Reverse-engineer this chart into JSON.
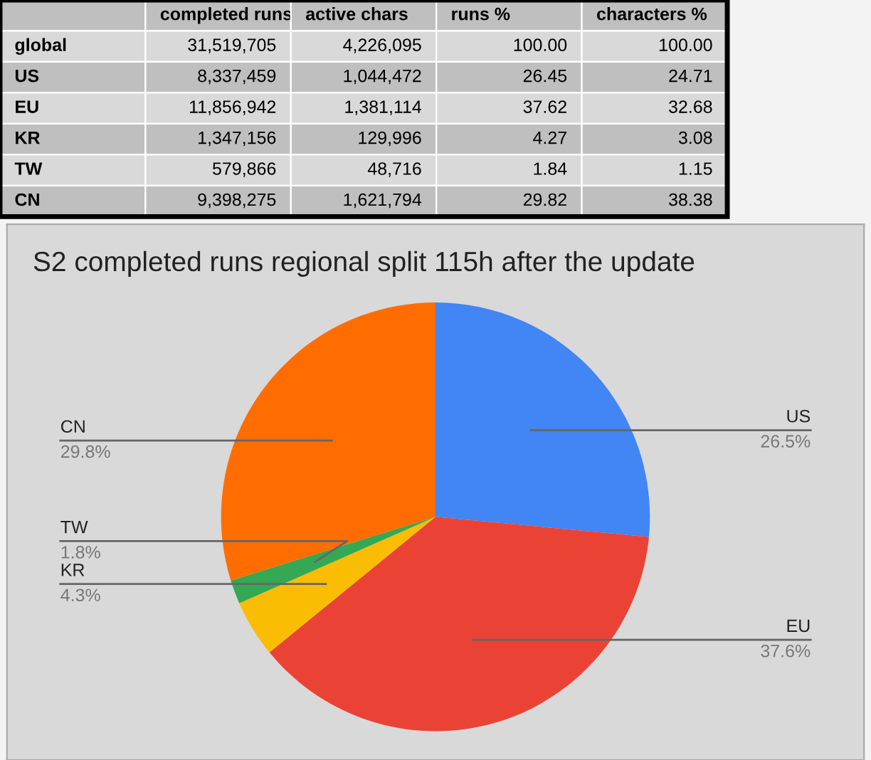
{
  "chart_data": [
    {
      "type": "other",
      "categories": [
        "global",
        "US",
        "EU",
        "KR",
        "TW",
        "CN"
      ],
      "series": [
        {
          "name": "completed runs",
          "values": [
            31519705,
            8337459,
            11856942,
            1347156,
            579866,
            9398275
          ],
          "value_labels": [
            "31,519,705",
            "8,337,459",
            "11,856,942",
            "1,347,156",
            "579,866",
            "9,398,275"
          ],
          "colors": [
            "#d9d9d9",
            "#bfbfbf",
            "#d9d9d9",
            "#bfbfbf",
            "#d9d9d9",
            "#bfbfbf"
          ]
        },
        {
          "name": "active chars",
          "values": [
            4226095,
            1044472,
            1381114,
            129996,
            48716,
            1621794
          ],
          "value_labels": [
            "4,226,095",
            "1,044,472",
            "1,381,114",
            "129,996",
            "48,716",
            "1,621,794"
          ],
          "colors": [
            "#d9d9d9",
            "#bfbfbf",
            "#d9d9d9",
            "#bfbfbf",
            "#d9d9d9",
            "#bfbfbf"
          ]
        },
        {
          "name": "runs %",
          "values": [
            100.0,
            26.45,
            37.62,
            4.27,
            1.84,
            29.82
          ],
          "value_labels": [
            "100.00",
            "26.45",
            "37.62",
            "4.27",
            "1.84",
            "29.82"
          ],
          "colors": [
            "#d9d9d9",
            "#bfbfbf",
            "#d9d9d9",
            "#bfbfbf",
            "#d9d9d9",
            "#bfbfbf"
          ]
        },
        {
          "name": "characters %",
          "values": [
            100.0,
            24.71,
            32.68,
            3.08,
            1.15,
            38.38
          ],
          "value_labels": [
            "100.00",
            "24.71",
            "32.68",
            "3.08",
            "1.15",
            "38.38"
          ],
          "colors": [
            "#d9d9d9",
            "#bfbfbf",
            "#d9d9d9",
            "#bfbfbf",
            "#d9d9d9",
            "#bfbfbf"
          ]
        }
      ]
    },
    {
      "type": "pie",
      "title": "S2 completed runs regional split 115h after the update",
      "categories": [
        "US",
        "EU",
        "KR",
        "TW",
        "CN"
      ],
      "values": [
        26.5,
        37.6,
        4.3,
        1.8,
        29.8
      ],
      "value_labels": [
        "26.5%",
        "37.6%",
        "4.3%",
        "1.8%",
        "29.8%"
      ],
      "colors": [
        "#4285f4",
        "#ea4335",
        "#fbbc04",
        "#34a853",
        "#ff6d01"
      ]
    }
  ]
}
